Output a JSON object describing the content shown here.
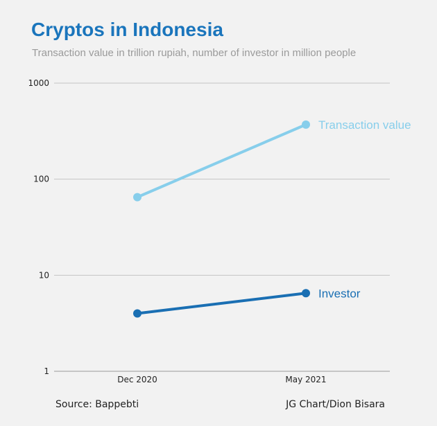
{
  "title": "Cryptos in Indonesia",
  "subtitle": "Transaction value in trillion rupiah, number of investor in million people",
  "source": "Source: Bappebti",
  "credit": "JG Chart/Dion Bisara",
  "chart_data": {
    "type": "line",
    "yscale": "log",
    "ylim": [
      1,
      1000
    ],
    "yticks": [
      {
        "value": 1,
        "label": "1"
      },
      {
        "value": 10,
        "label": "10"
      },
      {
        "value": 100,
        "label": "100"
      },
      {
        "value": 1000,
        "label": "1000"
      }
    ],
    "categories": [
      "Dec 2020",
      "May 2021"
    ],
    "grid": true,
    "series": [
      {
        "name": "Transaction value",
        "values": [
          65,
          370
        ],
        "color": "#87ceeb"
      },
      {
        "name": "Investor",
        "values": [
          4,
          6.5
        ],
        "color": "#1a6fb3"
      }
    ]
  }
}
